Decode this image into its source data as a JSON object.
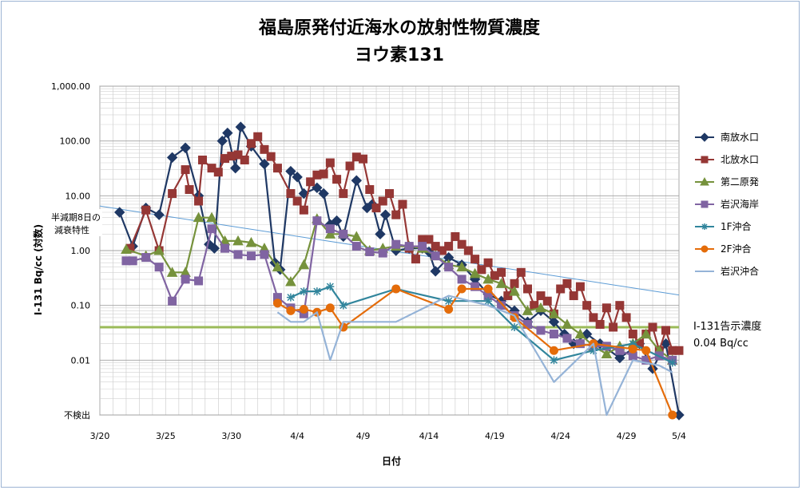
{
  "chart_data": {
    "type": "line",
    "title": "福島原発付近海水の放射性物質濃度",
    "subtitle": "ヨウ素131",
    "xlabel": "日付",
    "ylabel": "I-131  Bq/cc (対数)",
    "y_scale": "log",
    "ylim": [
      0.001,
      1000
    ],
    "y_ticks": [
      {
        "v": 1000,
        "label": "1,000.00"
      },
      {
        "v": 100,
        "label": "100.00"
      },
      {
        "v": 10,
        "label": "10.00"
      },
      {
        "v": 1,
        "label": "1.00"
      },
      {
        "v": 0.1,
        "label": "0.10"
      },
      {
        "v": 0.01,
        "label": "0.01"
      },
      {
        "v": 0.001,
        "label": "不検出"
      }
    ],
    "xlim": [
      0,
      44
    ],
    "x_ticks": [
      {
        "v": 0,
        "label": "3/20"
      },
      {
        "v": 5,
        "label": "3/25"
      },
      {
        "v": 10,
        "label": "3/30"
      },
      {
        "v": 15,
        "label": "4/4"
      },
      {
        "v": 20,
        "label": "4/9"
      },
      {
        "v": 25,
        "label": "4/14"
      },
      {
        "v": 30,
        "label": "4/19"
      },
      {
        "v": 35,
        "label": "4/24"
      },
      {
        "v": 40,
        "label": "4/29"
      },
      {
        "v": 44,
        "label": "5/4"
      }
    ],
    "grid": true,
    "legend_position": "right",
    "series": [
      {
        "name": "南放水口",
        "color": "#1f3864",
        "marker": "diamond",
        "points": [
          [
            1.5,
            5
          ],
          [
            2.5,
            1.2
          ],
          [
            3.5,
            6
          ],
          [
            4.5,
            4.5
          ],
          [
            5.5,
            50
          ],
          [
            6.5,
            75
          ],
          [
            7.5,
            10
          ],
          [
            8.3,
            1.3
          ],
          [
            8.7,
            1.1
          ],
          [
            9.3,
            100
          ],
          [
            9.7,
            140
          ],
          [
            10.3,
            32
          ],
          [
            10.7,
            180
          ],
          [
            11.5,
            80
          ],
          [
            12.5,
            38
          ],
          [
            13.3,
            0.6
          ],
          [
            13.7,
            0.45
          ],
          [
            14.5,
            28
          ],
          [
            15,
            22
          ],
          [
            15.5,
            11
          ],
          [
            16.5,
            14
          ],
          [
            17,
            11
          ],
          [
            17.5,
            3
          ],
          [
            18,
            3.5
          ],
          [
            18.5,
            1.8
          ],
          [
            19.5,
            19
          ],
          [
            20.3,
            6
          ],
          [
            20.7,
            7
          ],
          [
            21.3,
            2
          ],
          [
            21.7,
            4.5
          ],
          [
            22.5,
            1
          ],
          [
            23.5,
            1.1
          ],
          [
            24.5,
            1.1
          ],
          [
            25,
            0.95
          ],
          [
            25.5,
            0.42
          ],
          [
            26.5,
            0.75
          ],
          [
            27.5,
            0.55
          ],
          [
            28.5,
            0.3
          ],
          [
            29.5,
            0.16
          ],
          [
            30.5,
            0.12
          ],
          [
            31.5,
            0.08
          ],
          [
            32.5,
            0.05
          ],
          [
            33.5,
            0.08
          ],
          [
            34.5,
            0.05
          ],
          [
            35.3,
            0.03
          ],
          [
            36,
            0.02
          ],
          [
            37,
            0.03
          ],
          [
            38,
            0.02
          ],
          [
            39.5,
            0.011
          ],
          [
            41,
            0.02
          ],
          [
            42,
            0.007
          ],
          [
            43,
            0.02
          ],
          [
            44,
            0.001
          ]
        ]
      },
      {
        "name": "北放水口",
        "color": "#953735",
        "marker": "square",
        "points": [
          [
            2.3,
            1.1
          ],
          [
            3.5,
            5.5
          ],
          [
            4.5,
            1
          ],
          [
            5.5,
            11
          ],
          [
            6.5,
            30
          ],
          [
            6.8,
            13
          ],
          [
            7.5,
            8
          ],
          [
            7.8,
            45
          ],
          [
            8.5,
            32
          ],
          [
            9,
            27
          ],
          [
            9.5,
            48
          ],
          [
            10,
            53
          ],
          [
            10.5,
            56
          ],
          [
            11,
            45
          ],
          [
            11.5,
            90
          ],
          [
            12,
            120
          ],
          [
            12.5,
            70
          ],
          [
            13,
            52
          ],
          [
            13.5,
            32
          ],
          [
            14.5,
            11
          ],
          [
            15,
            8
          ],
          [
            15.5,
            5.5
          ],
          [
            16,
            18
          ],
          [
            16.5,
            24
          ],
          [
            17,
            25
          ],
          [
            17.5,
            40
          ],
          [
            18,
            20
          ],
          [
            18.5,
            11
          ],
          [
            19,
            35
          ],
          [
            19.5,
            51
          ],
          [
            20,
            47
          ],
          [
            20.5,
            13
          ],
          [
            21,
            6
          ],
          [
            21.5,
            8
          ],
          [
            22,
            11
          ],
          [
            22.5,
            4.5
          ],
          [
            23,
            7
          ],
          [
            23.5,
            1.1
          ],
          [
            24,
            0.7
          ],
          [
            24.5,
            1.6
          ],
          [
            25,
            1.6
          ],
          [
            25.5,
            1.2
          ],
          [
            26,
            1
          ],
          [
            26.5,
            1.2
          ],
          [
            27,
            1.8
          ],
          [
            27.5,
            1.3
          ],
          [
            28,
            1
          ],
          [
            28.5,
            0.7
          ],
          [
            29,
            0.45
          ],
          [
            29.5,
            0.6
          ],
          [
            30,
            0.35
          ],
          [
            30.5,
            0.4
          ],
          [
            31,
            0.15
          ],
          [
            31.5,
            0.25
          ],
          [
            32,
            0.4
          ],
          [
            32.5,
            0.2
          ],
          [
            33,
            0.1
          ],
          [
            33.5,
            0.15
          ],
          [
            34,
            0.12
          ],
          [
            34.5,
            0.07
          ],
          [
            35,
            0.2
          ],
          [
            35.5,
            0.25
          ],
          [
            36,
            0.15
          ],
          [
            36.5,
            0.22
          ],
          [
            37,
            0.1
          ],
          [
            37.5,
            0.06
          ],
          [
            38,
            0.045
          ],
          [
            38.5,
            0.09
          ],
          [
            39,
            0.04
          ],
          [
            39.5,
            0.1
          ],
          [
            40,
            0.06
          ],
          [
            40.5,
            0.03
          ],
          [
            41,
            0.02
          ],
          [
            41.5,
            0.03
          ],
          [
            42,
            0.04
          ],
          [
            42.5,
            0.015
          ],
          [
            43,
            0.035
          ],
          [
            43.5,
            0.015
          ],
          [
            44,
            0.015
          ]
        ]
      },
      {
        "name": "第二原発",
        "color": "#76923c",
        "marker": "triangle",
        "points": [
          [
            2,
            1.05
          ],
          [
            3.5,
            0.8
          ],
          [
            4.5,
            1
          ],
          [
            5.5,
            0.4
          ],
          [
            6.5,
            0.4
          ],
          [
            7.5,
            4
          ],
          [
            8.5,
            4
          ],
          [
            9.5,
            1.5
          ],
          [
            10.5,
            1.5
          ],
          [
            11.5,
            1.4
          ],
          [
            12.5,
            1.1
          ],
          [
            13.5,
            0.5
          ],
          [
            14.5,
            0.27
          ],
          [
            15.5,
            0.55
          ],
          [
            16.5,
            3.8
          ],
          [
            17.5,
            2
          ],
          [
            18.5,
            2
          ],
          [
            19.5,
            1.8
          ],
          [
            20.5,
            1
          ],
          [
            21.5,
            1.1
          ],
          [
            22.5,
            1.2
          ],
          [
            23.5,
            1.2
          ],
          [
            24.5,
            1.1
          ],
          [
            25.5,
            0.8
          ],
          [
            26.5,
            0.55
          ],
          [
            27.5,
            0.5
          ],
          [
            28.5,
            0.38
          ],
          [
            29.5,
            0.3
          ],
          [
            30.5,
            0.25
          ],
          [
            31.5,
            0.18
          ],
          [
            32.5,
            0.08
          ],
          [
            33.5,
            0.09
          ],
          [
            34.5,
            0.07
          ],
          [
            35.5,
            0.045
          ],
          [
            36.5,
            0.03
          ],
          [
            37.5,
            0.018
          ],
          [
            38.5,
            0.013
          ],
          [
            39.5,
            0.018
          ],
          [
            40.5,
            0.02
          ],
          [
            41.5,
            0.03
          ],
          [
            42.5,
            0.015
          ],
          [
            43.5,
            0.01
          ]
        ]
      },
      {
        "name": "岩沢海岸",
        "color": "#8064a2",
        "marker": "square",
        "points": [
          [
            2,
            0.65
          ],
          [
            2.5,
            0.65
          ],
          [
            3.5,
            0.75
          ],
          [
            4.5,
            0.5
          ],
          [
            5.5,
            0.12
          ],
          [
            6.5,
            0.3
          ],
          [
            7.5,
            0.28
          ],
          [
            8.5,
            2.5
          ],
          [
            9.5,
            1.1
          ],
          [
            10.5,
            0.85
          ],
          [
            11.5,
            0.8
          ],
          [
            12.5,
            0.85
          ],
          [
            13.5,
            0.14
          ],
          [
            14.5,
            0.09
          ],
          [
            15.5,
            0.07
          ],
          [
            16.5,
            3.5
          ],
          [
            17.5,
            2.5
          ],
          [
            18.5,
            2
          ],
          [
            19.5,
            1.2
          ],
          [
            20.5,
            0.95
          ],
          [
            21.5,
            0.9
          ],
          [
            22.5,
            1.3
          ],
          [
            23.5,
            1.2
          ],
          [
            24.5,
            1.2
          ],
          [
            25.5,
            0.8
          ],
          [
            26.5,
            0.5
          ],
          [
            27.5,
            0.3
          ],
          [
            28.5,
            0.22
          ],
          [
            29.5,
            0.15
          ],
          [
            30.5,
            0.1
          ],
          [
            31.5,
            0.065
          ],
          [
            32.5,
            0.045
          ],
          [
            33.5,
            0.035
          ],
          [
            34.5,
            0.03
          ],
          [
            35.5,
            0.025
          ],
          [
            36.5,
            0.02
          ],
          [
            37.5,
            0.018
          ],
          [
            38.5,
            0.018
          ],
          [
            39.5,
            0.015
          ],
          [
            40.5,
            0.012
          ],
          [
            41.5,
            0.01
          ],
          [
            42.5,
            0.012
          ],
          [
            43.5,
            0.01
          ]
        ]
      },
      {
        "name": "1F沖合",
        "color": "#31859c",
        "marker": "asterisk",
        "points": [
          [
            14.5,
            0.14
          ],
          [
            15.5,
            0.18
          ],
          [
            16.5,
            0.18
          ],
          [
            17.5,
            0.22
          ],
          [
            18.5,
            0.1
          ],
          [
            22.5,
            0.2
          ],
          [
            26.5,
            0.12
          ],
          [
            29.5,
            0.12
          ],
          [
            31.5,
            0.04
          ],
          [
            34.5,
            0.01
          ],
          [
            37.5,
            0.015
          ],
          [
            40.5,
            0.02
          ],
          [
            43.5,
            0.009
          ]
        ]
      },
      {
        "name": "2F沖合",
        "color": "#e46c0a",
        "marker": "circle",
        "points": [
          [
            13.5,
            0.11
          ],
          [
            14.5,
            0.08
          ],
          [
            15.5,
            0.085
          ],
          [
            16.5,
            0.075
          ],
          [
            17.5,
            0.09
          ],
          [
            18.5,
            0.04
          ],
          [
            22.5,
            0.2
          ],
          [
            26.5,
            0.085
          ],
          [
            27.5,
            0.2
          ],
          [
            29.5,
            0.2
          ],
          [
            31.5,
            0.06
          ],
          [
            34.5,
            0.015
          ],
          [
            37.5,
            0.02
          ],
          [
            40.5,
            0.016
          ],
          [
            41.5,
            0.015
          ],
          [
            43.5,
            0.001
          ]
        ]
      },
      {
        "name": "岩沢沖合",
        "color": "#95b3d7",
        "marker": "line",
        "points": [
          [
            13.5,
            0.075
          ],
          [
            14.5,
            0.05
          ],
          [
            15.5,
            0.05
          ],
          [
            16.5,
            0.075
          ],
          [
            17.5,
            0.01
          ],
          [
            18.5,
            0.05
          ],
          [
            22.5,
            0.05
          ],
          [
            26.5,
            0.15
          ],
          [
            29.5,
            0.1
          ],
          [
            31.5,
            0.065
          ],
          [
            34.5,
            0.004
          ],
          [
            37.5,
            0.02
          ],
          [
            38.5,
            0.001
          ],
          [
            40.5,
            0.01
          ],
          [
            42.5,
            0.008
          ],
          [
            43.5,
            0.006
          ]
        ]
      }
    ],
    "annotations": {
      "decay_line_label": "半減期8日の減衰特性",
      "decay_line": {
        "start": [
          0,
          6.5
        ],
        "end": [
          44,
          0.155
        ],
        "color": "#5b9bd5"
      },
      "reference_line": {
        "value": 0.04,
        "color": "#9bbb59"
      },
      "reference_label_1": "I-131告示濃度",
      "reference_label_2": "0.04  Bq/cc"
    }
  }
}
